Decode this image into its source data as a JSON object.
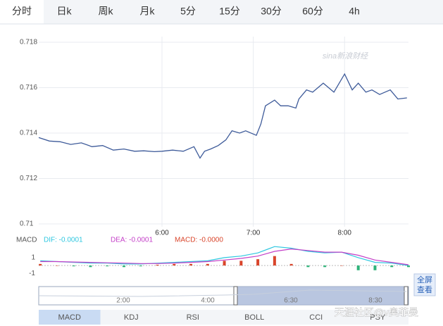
{
  "tabs": [
    "分时",
    "日k",
    "周k",
    "月k",
    "5分",
    "15分",
    "30分",
    "60分",
    "4h"
  ],
  "chart_data": [
    {
      "type": "line",
      "x": [
        279,
        286,
        293,
        300,
        307,
        314,
        321,
        328,
        335,
        342,
        348,
        355,
        360,
        367,
        374,
        381,
        385,
        388,
        392,
        397,
        402,
        406,
        411,
        415,
        422,
        425,
        428,
        434,
        438,
        443,
        448,
        450,
        455,
        459,
        466,
        473,
        480,
        485,
        489,
        494,
        498,
        503,
        510,
        515,
        521
      ],
      "series": [
        {
          "color": "#3d5a99",
          "values": [
            0.7138,
            0.71365,
            0.71362,
            0.7135,
            0.71357,
            0.7134,
            0.71345,
            0.71325,
            0.7133,
            0.7132,
            0.71322,
            0.71318,
            0.7132,
            0.71325,
            0.7132,
            0.7134,
            0.7129,
            0.7132,
            0.7133,
            0.71345,
            0.7137,
            0.7141,
            0.714,
            0.7141,
            0.7139,
            0.7144,
            0.7152,
            0.71545,
            0.7152,
            0.7152,
            0.7151,
            0.7155,
            0.7159,
            0.7158,
            0.7162,
            0.7158,
            0.7166,
            0.7159,
            0.7162,
            0.7158,
            0.7159,
            0.7157,
            0.7159,
            0.7155,
            0.71555
          ]
        }
      ],
      "xlim": [
        279,
        522
      ],
      "xticks": [
        {
          "value": 360,
          "label": "6:00"
        },
        {
          "value": 420,
          "label": "7:00"
        },
        {
          "value": 480,
          "label": "8:00"
        }
      ],
      "ylim": [
        0.71,
        0.718
      ],
      "yticks": [
        0.718,
        0.716,
        0.714,
        0.712,
        0.71
      ],
      "grid": true,
      "annotation": "sina新浪财经"
    },
    {
      "type": "combo",
      "title": "MACD",
      "x": [
        280,
        291,
        302,
        313,
        324,
        335,
        346,
        357,
        368,
        379,
        390,
        401,
        412,
        423,
        434,
        445,
        456,
        467,
        478,
        489,
        500,
        511,
        522
      ],
      "series": [
        {
          "name": "DIF: -0.0001",
          "type": "line",
          "color": "#2ec7e0",
          "values": [
            0.6,
            0.5,
            0.4,
            0.3,
            0.3,
            0.2,
            0.2,
            0.3,
            0.4,
            0.5,
            0.6,
            1.0,
            1.2,
            1.6,
            2.4,
            2.2,
            1.8,
            1.6,
            1.7,
            1.0,
            0.4,
            0.3,
            0.0
          ]
        },
        {
          "name": "DEA: -0.0001",
          "type": "line",
          "color": "#c440c8",
          "values": [
            0.5,
            0.5,
            0.45,
            0.4,
            0.35,
            0.3,
            0.25,
            0.25,
            0.3,
            0.4,
            0.5,
            0.7,
            0.9,
            1.2,
            1.8,
            2.1,
            1.9,
            1.7,
            1.7,
            1.3,
            0.7,
            0.4,
            0.1
          ]
        },
        {
          "name": "MACD: -0.0000",
          "type": "bar",
          "color": "#d9452b",
          "negative_color": "#2fb37a",
          "values": [
            0.2,
            0,
            -0.1,
            -0.2,
            -0.1,
            -0.2,
            -0.1,
            0.1,
            0.2,
            0.2,
            0.2,
            0.6,
            0.6,
            0.8,
            1.2,
            0.2,
            -0.2,
            -0.2,
            0,
            -0.6,
            -0.6,
            -0.2,
            -0.2
          ]
        }
      ],
      "xlim": [
        279,
        522
      ],
      "ylim": [
        -1.6,
        2.6
      ],
      "yticks": [
        1,
        -1
      ]
    }
  ],
  "navigator": {
    "labels": [
      "2:00",
      "4:00",
      "6:30",
      "8:30"
    ]
  },
  "buttons": [
    "全屏",
    "查看"
  ],
  "indicator_tabs": [
    "MACD",
    "KDJ",
    "RSI",
    "BOLL",
    "CCI",
    "PSY"
  ],
  "watermark": "天涯社区@v奥菲曼"
}
